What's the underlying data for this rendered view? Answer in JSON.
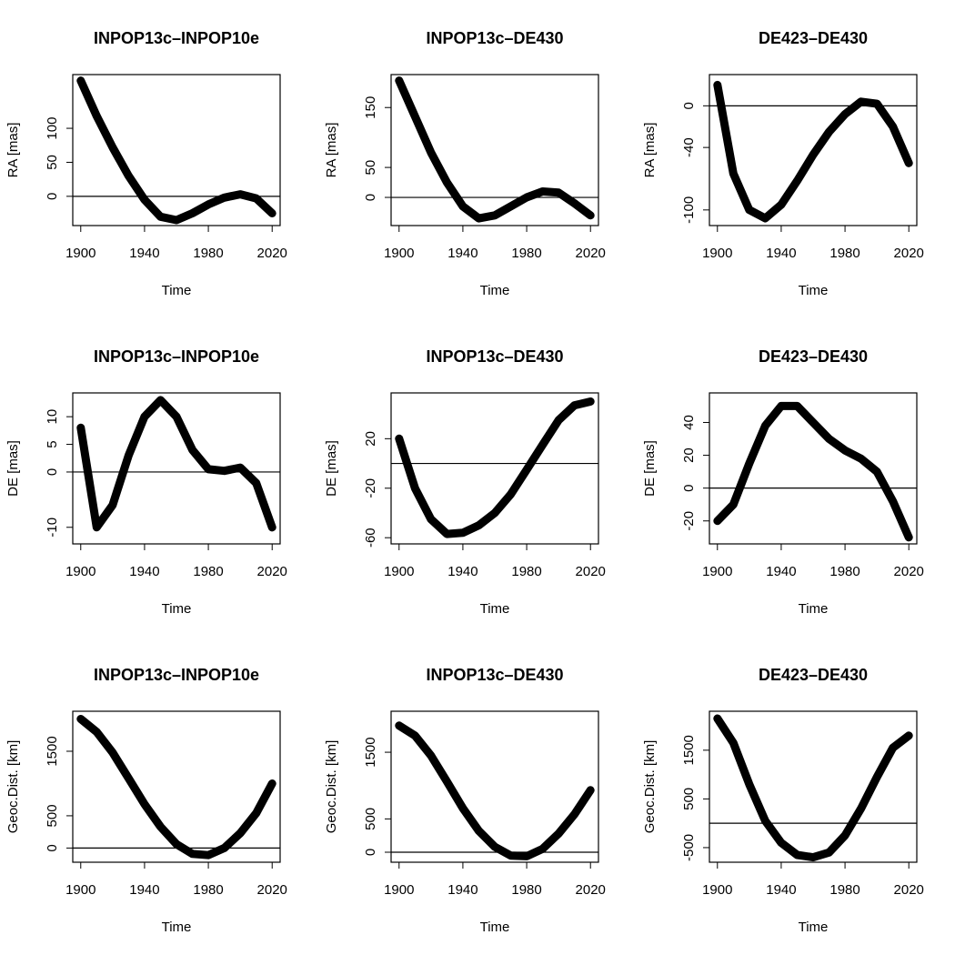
{
  "chart_data": [
    {
      "type": "line",
      "title": "INPOP13c–INPOP10e",
      "xlabel": "Time",
      "ylabel": "RA [mas]",
      "color": "#000000",
      "hline": 0,
      "x": [
        1900,
        1910,
        1920,
        1930,
        1940,
        1950,
        1960,
        1970,
        1980,
        1990,
        2000,
        2010,
        2020
      ],
      "values": [
        170,
        118,
        72,
        30,
        -5,
        -30,
        -35,
        -25,
        -12,
        -2,
        3,
        -3,
        -25
      ],
      "xlim": [
        1895,
        2025
      ],
      "xticks": [
        1900,
        1940,
        1980,
        2020
      ],
      "ylim": [
        -43,
        179
      ],
      "yticks": [
        0,
        50,
        100
      ]
    },
    {
      "type": "line",
      "title": "INPOP13c–DE430",
      "xlabel": "Time",
      "ylabel": "RA [mas]",
      "color": "#000000",
      "hline": 0,
      "x": [
        1900,
        1910,
        1920,
        1930,
        1940,
        1950,
        1960,
        1970,
        1980,
        1990,
        2000,
        2010,
        2020
      ],
      "values": [
        195,
        135,
        75,
        25,
        -15,
        -35,
        -30,
        -15,
        0,
        10,
        8,
        -10,
        -30
      ],
      "xlim": [
        1895,
        2025
      ],
      "xticks": [
        1900,
        1940,
        1980,
        2020
      ],
      "ylim": [
        -47,
        205
      ],
      "yticks": [
        0,
        50,
        150
      ]
    },
    {
      "type": "line",
      "title": "DE423–DE430",
      "xlabel": "Time",
      "ylabel": "RA [mas]",
      "color": "#000000",
      "hline": 0,
      "x": [
        1900,
        1910,
        1920,
        1930,
        1940,
        1950,
        1960,
        1970,
        1980,
        1990,
        2000,
        2010,
        2020
      ],
      "values": [
        20,
        -65,
        -100,
        -108,
        -95,
        -72,
        -47,
        -25,
        -8,
        4,
        2,
        -20,
        -55
      ],
      "xlim": [
        1895,
        2025
      ],
      "xticks": [
        1900,
        1940,
        1980,
        2020
      ],
      "ylim": [
        -115,
        30
      ],
      "yticks": [
        -100,
        -40,
        0
      ]
    },
    {
      "type": "line",
      "title": "INPOP13c–INPOP10e",
      "xlabel": "Time",
      "ylabel": "DE [mas]",
      "color": "#000000",
      "hline": 0,
      "x": [
        1900,
        1910,
        1920,
        1930,
        1940,
        1950,
        1960,
        1970,
        1980,
        1990,
        2000,
        2010,
        2020
      ],
      "values": [
        8,
        -10,
        -6,
        3,
        10,
        13,
        10,
        4,
        0.5,
        0.2,
        0.8,
        -2,
        -10
      ],
      "xlim": [
        1895,
        2025
      ],
      "xticks": [
        1900,
        1940,
        1980,
        2020
      ],
      "ylim": [
        -13,
        14.3
      ],
      "yticks": [
        -10,
        0,
        5,
        10
      ]
    },
    {
      "type": "line",
      "title": "INPOP13c–DE430",
      "xlabel": "Time",
      "ylabel": "DE [mas]",
      "color": "#000000",
      "hline": 0,
      "x": [
        1900,
        1910,
        1920,
        1930,
        1940,
        1950,
        1960,
        1970,
        1980,
        1990,
        2000,
        2010,
        2020
      ],
      "values": [
        20,
        -20,
        -45,
        -57,
        -56,
        -50,
        -40,
        -25,
        -5,
        15,
        35,
        47,
        50
      ],
      "xlim": [
        1895,
        2025
      ],
      "xticks": [
        1900,
        1940,
        1980,
        2020
      ],
      "ylim": [
        -65,
        57
      ],
      "yticks": [
        -60,
        -20,
        20
      ]
    },
    {
      "type": "line",
      "title": "DE423–DE430",
      "xlabel": "Time",
      "ylabel": "DE [mas]",
      "color": "#000000",
      "hline": 0,
      "x": [
        1900,
        1910,
        1920,
        1930,
        1940,
        1950,
        1960,
        1970,
        1980,
        1990,
        2000,
        2010,
        2020
      ],
      "values": [
        -20,
        -10,
        15,
        38,
        50,
        50,
        40,
        30,
        23,
        18,
        10,
        -8,
        -30
      ],
      "xlim": [
        1895,
        2025
      ],
      "xticks": [
        1900,
        1940,
        1980,
        2020
      ],
      "ylim": [
        -34,
        58
      ],
      "yticks": [
        -20,
        0,
        20,
        40
      ]
    },
    {
      "type": "line",
      "title": "INPOP13c–INPOP10e",
      "xlabel": "Time",
      "ylabel": "Geoc.Dist. [km]",
      "color": "#000000",
      "hline": 0,
      "x": [
        1900,
        1910,
        1920,
        1930,
        1940,
        1950,
        1960,
        1970,
        1980,
        1990,
        2000,
        2010,
        2020
      ],
      "values": [
        2000,
        1800,
        1480,
        1080,
        680,
        330,
        60,
        -90,
        -110,
        0,
        230,
        540,
        1000
      ],
      "xlim": [
        1895,
        2025
      ],
      "xticks": [
        1900,
        1940,
        1980,
        2020
      ],
      "ylim": [
        -220,
        2120
      ],
      "yticks": [
        0,
        500,
        1500
      ]
    },
    {
      "type": "line",
      "title": "INPOP13c–DE430",
      "xlabel": "Time",
      "ylabel": "Geoc.Dist. [km]",
      "color": "#000000",
      "hline": 0,
      "x": [
        1900,
        1910,
        1920,
        1930,
        1940,
        1950,
        1960,
        1970,
        1980,
        1990,
        2000,
        2010,
        2020
      ],
      "values": [
        1900,
        1750,
        1450,
        1060,
        660,
        320,
        80,
        -50,
        -60,
        50,
        280,
        570,
        930
      ],
      "xlim": [
        1895,
        2025
      ],
      "xticks": [
        1900,
        1940,
        1980,
        2020
      ],
      "ylim": [
        -150,
        2115
      ],
      "yticks": [
        0,
        500,
        1500
      ]
    },
    {
      "type": "line",
      "title": "DE423–DE430",
      "xlabel": "Time",
      "ylabel": "Geoc.Dist. [km]",
      "color": "#000000",
      "hline": 0,
      "x": [
        1900,
        1910,
        1920,
        1930,
        1940,
        1950,
        1960,
        1970,
        1980,
        1990,
        2000,
        2010,
        2020
      ],
      "values": [
        2150,
        1650,
        800,
        50,
        -400,
        -650,
        -700,
        -600,
        -250,
        300,
        950,
        1550,
        1800
      ],
      "xlim": [
        1895,
        2025
      ],
      "xticks": [
        1900,
        1940,
        1980,
        2020
      ],
      "ylim": [
        -800,
        2300
      ],
      "yticks": [
        -500,
        500,
        1500
      ]
    }
  ]
}
